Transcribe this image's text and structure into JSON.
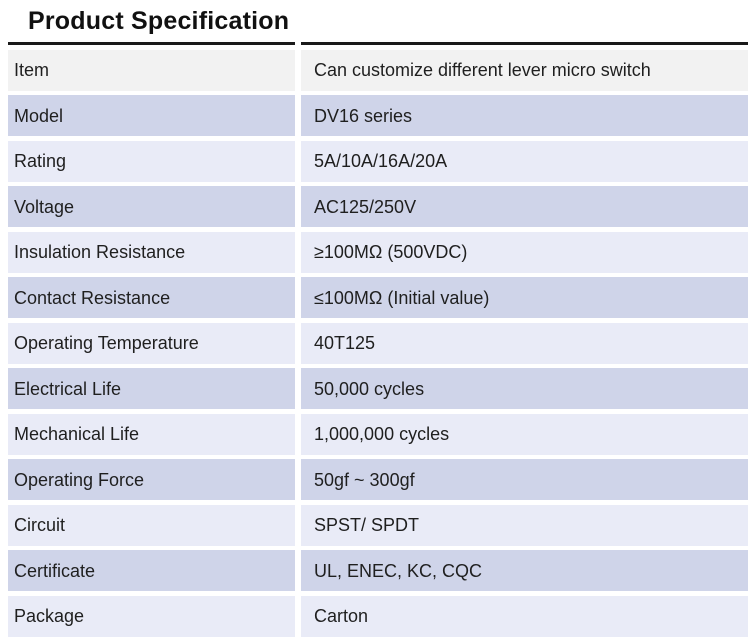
{
  "title": "Product Specification",
  "colors": {
    "header_row_bg": "#f2f2f2",
    "row_dark_bg": "#cfd4e9",
    "row_light_bg": "#e9ebf7",
    "top_border": "#1a1a1a",
    "text": "#1f1f1f"
  },
  "table": {
    "rows": [
      {
        "label": "Item",
        "value": "Can customize different lever micro switch"
      },
      {
        "label": "Model",
        "value": "DV16 series"
      },
      {
        "label": "Rating",
        "value": "5A/10A/16A/20A"
      },
      {
        "label": "Voltage",
        "value": "AC125/250V"
      },
      {
        "label": "Insulation Resistance",
        "value": "≥100MΩ (500VDC)"
      },
      {
        "label": "Contact Resistance",
        "value": "≤100MΩ (Initial value)"
      },
      {
        "label": "Operating Temperature",
        "value": "40T125"
      },
      {
        "label": "Electrical Life",
        "value": "50,000 cycles"
      },
      {
        "label": "Mechanical Life",
        "value": "1,000,000 cycles"
      },
      {
        "label": "Operating Force",
        "value": "50gf ~ 300gf"
      },
      {
        "label": "Circuit",
        "value": "SPST/ SPDT"
      },
      {
        "label": "Certificate",
        "value": "UL, ENEC, KC, CQC"
      },
      {
        "label": "Package",
        "value": "Carton"
      }
    ]
  }
}
